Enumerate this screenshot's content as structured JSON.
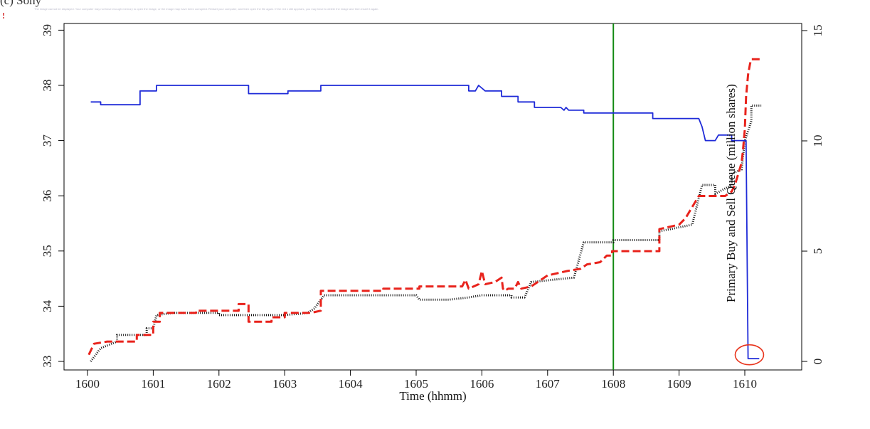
{
  "page": {
    "panel_label": "(c) Sony",
    "missing_image_note": "The image cannot be displayed. Your computer may not have enough memory to open the image, or the image may have been corrupted. Restart your computer, and then open the file again. If the red x still appears, you may have to delete the image and then insert it again."
  },
  "chart_data": {
    "type": "line",
    "title": "",
    "xlabel": "Time (hhmm)",
    "ylabel": "",
    "y2label": "Primary Buy and Sell Queue (million shares)",
    "xlim": [
      0,
      10.35
    ],
    "ylim": [
      33,
      39.1
    ],
    "y2lim": [
      0,
      15.2
    ],
    "x_ticks": [
      {
        "value": 0,
        "label": "1600"
      },
      {
        "value": 1,
        "label": "1601"
      },
      {
        "value": 2,
        "label": "1602"
      },
      {
        "value": 3,
        "label": "1603"
      },
      {
        "value": 4,
        "label": "1604"
      },
      {
        "value": 5,
        "label": "1605"
      },
      {
        "value": 6,
        "label": "1606"
      },
      {
        "value": 7,
        "label": "1607"
      },
      {
        "value": 8,
        "label": "1608"
      },
      {
        "value": 9,
        "label": "1609"
      },
      {
        "value": 10,
        "label": "1610"
      }
    ],
    "y_ticks": [
      {
        "value": 33,
        "label": "33"
      },
      {
        "value": 34,
        "label": "34"
      },
      {
        "value": 35,
        "label": "35"
      },
      {
        "value": 36,
        "label": "36"
      },
      {
        "value": 37,
        "label": "37"
      },
      {
        "value": 38,
        "label": "38"
      },
      {
        "value": 39,
        "label": "39"
      }
    ],
    "y2_ticks": [
      {
        "value": 0,
        "label": "0"
      },
      {
        "value": 5,
        "label": "5"
      },
      {
        "value": 10,
        "label": "10"
      },
      {
        "value": 15,
        "label": "15"
      }
    ],
    "grid": false,
    "vline": {
      "x": 8.0,
      "color": "#138a13"
    },
    "annotation": {
      "x": 10.07,
      "y2": 0.3,
      "shape": "ellipse",
      "color": "#e8341c"
    },
    "series": [
      {
        "axis": "left",
        "color": "#1f2bd8",
        "style": "solid",
        "points": [
          [
            0.05,
            37.7
          ],
          [
            0.2,
            37.7
          ],
          [
            0.2,
            37.65
          ],
          [
            0.8,
            37.65
          ],
          [
            0.8,
            37.9
          ],
          [
            1.05,
            37.9
          ],
          [
            1.05,
            38.0
          ],
          [
            2.45,
            38.0
          ],
          [
            2.45,
            37.85
          ],
          [
            3.05,
            37.85
          ],
          [
            3.05,
            37.9
          ],
          [
            3.55,
            37.9
          ],
          [
            3.55,
            38.0
          ],
          [
            5.8,
            38.0
          ],
          [
            5.8,
            37.9
          ],
          [
            5.9,
            37.9
          ],
          [
            5.95,
            38.0
          ],
          [
            6.05,
            37.9
          ],
          [
            6.3,
            37.9
          ],
          [
            6.3,
            37.8
          ],
          [
            6.55,
            37.8
          ],
          [
            6.55,
            37.7
          ],
          [
            6.8,
            37.7
          ],
          [
            6.8,
            37.6
          ],
          [
            7.2,
            37.6
          ],
          [
            7.25,
            37.55
          ],
          [
            7.28,
            37.6
          ],
          [
            7.32,
            37.55
          ],
          [
            7.55,
            37.55
          ],
          [
            7.55,
            37.5
          ],
          [
            8.6,
            37.5
          ],
          [
            8.6,
            37.4
          ],
          [
            9.3,
            37.4
          ],
          [
            9.35,
            37.25
          ],
          [
            9.4,
            37.0
          ],
          [
            9.55,
            37.0
          ],
          [
            9.6,
            37.1
          ],
          [
            9.8,
            37.1
          ],
          [
            9.8,
            37.0
          ],
          [
            10.02,
            37.0
          ],
          [
            10.05,
            33.05
          ],
          [
            10.22,
            33.05
          ]
        ]
      },
      {
        "axis": "right",
        "color": "#e8231c",
        "style": "dashed",
        "points": [
          [
            0.02,
            0.3
          ],
          [
            0.1,
            0.8
          ],
          [
            0.3,
            0.9
          ],
          [
            0.75,
            0.9
          ],
          [
            0.75,
            1.2
          ],
          [
            1.0,
            1.2
          ],
          [
            1.0,
            1.8
          ],
          [
            1.1,
            1.8
          ],
          [
            1.1,
            2.2
          ],
          [
            1.65,
            2.2
          ],
          [
            1.65,
            2.3
          ],
          [
            2.3,
            2.3
          ],
          [
            2.3,
            2.6
          ],
          [
            2.45,
            2.6
          ],
          [
            2.45,
            1.8
          ],
          [
            2.8,
            1.8
          ],
          [
            2.8,
            2.0
          ],
          [
            3.0,
            2.0
          ],
          [
            3.0,
            2.2
          ],
          [
            3.4,
            2.2
          ],
          [
            3.55,
            2.3
          ],
          [
            3.55,
            3.2
          ],
          [
            4.5,
            3.2
          ],
          [
            4.5,
            3.3
          ],
          [
            5.05,
            3.3
          ],
          [
            5.05,
            3.4
          ],
          [
            5.7,
            3.4
          ],
          [
            5.75,
            3.7
          ],
          [
            5.8,
            3.3
          ],
          [
            5.95,
            3.5
          ],
          [
            6.0,
            4.1
          ],
          [
            6.05,
            3.5
          ],
          [
            6.2,
            3.6
          ],
          [
            6.3,
            3.8
          ],
          [
            6.32,
            3.3
          ],
          [
            6.35,
            3.2
          ],
          [
            6.4,
            3.3
          ],
          [
            6.5,
            3.3
          ],
          [
            6.55,
            3.6
          ],
          [
            6.6,
            3.3
          ],
          [
            6.75,
            3.4
          ],
          [
            6.8,
            3.5
          ],
          [
            7.0,
            3.9
          ],
          [
            7.3,
            4.1
          ],
          [
            7.5,
            4.2
          ],
          [
            7.6,
            4.4
          ],
          [
            7.8,
            4.5
          ],
          [
            7.9,
            4.8
          ],
          [
            7.98,
            4.8
          ],
          [
            7.98,
            5.0
          ],
          [
            8.7,
            5.0
          ],
          [
            8.7,
            6.0
          ],
          [
            9.0,
            6.2
          ],
          [
            9.1,
            6.5
          ],
          [
            9.3,
            7.5
          ],
          [
            9.7,
            7.5
          ],
          [
            9.8,
            7.7
          ],
          [
            9.85,
            8.0
          ],
          [
            9.9,
            8.5
          ],
          [
            9.95,
            9.0
          ],
          [
            9.97,
            9.5
          ],
          [
            10.0,
            10.5
          ],
          [
            10.02,
            12.0
          ],
          [
            10.05,
            13.0
          ],
          [
            10.08,
            13.5
          ],
          [
            10.1,
            13.7
          ],
          [
            10.25,
            13.7
          ]
        ]
      },
      {
        "axis": "right",
        "color": "#111111",
        "style": "dotted",
        "points": [
          [
            0.05,
            0.0
          ],
          [
            0.2,
            0.6
          ],
          [
            0.45,
            0.9
          ],
          [
            0.45,
            1.2
          ],
          [
            0.9,
            1.2
          ],
          [
            0.9,
            1.5
          ],
          [
            1.0,
            1.5
          ],
          [
            1.05,
            2.1
          ],
          [
            1.3,
            2.2
          ],
          [
            2.0,
            2.2
          ],
          [
            2.0,
            2.1
          ],
          [
            3.0,
            2.1
          ],
          [
            3.35,
            2.2
          ],
          [
            3.45,
            2.4
          ],
          [
            3.6,
            3.0
          ],
          [
            5.0,
            3.0
          ],
          [
            5.05,
            2.8
          ],
          [
            5.5,
            2.8
          ],
          [
            5.8,
            2.9
          ],
          [
            6.0,
            3.0
          ],
          [
            6.05,
            3.0
          ],
          [
            6.45,
            3.0
          ],
          [
            6.45,
            2.9
          ],
          [
            6.65,
            2.9
          ],
          [
            6.75,
            3.6
          ],
          [
            7.4,
            3.8
          ],
          [
            7.55,
            5.4
          ],
          [
            8.0,
            5.4
          ],
          [
            8.0,
            5.5
          ],
          [
            8.7,
            5.5
          ],
          [
            8.7,
            5.9
          ],
          [
            9.2,
            6.2
          ],
          [
            9.35,
            8.0
          ],
          [
            9.55,
            8.0
          ],
          [
            9.55,
            7.6
          ],
          [
            9.8,
            8.0
          ],
          [
            9.8,
            8.5
          ],
          [
            9.95,
            8.7
          ],
          [
            10.0,
            10.0
          ],
          [
            10.1,
            10.9
          ],
          [
            10.1,
            11.6
          ],
          [
            10.25,
            11.6
          ]
        ]
      }
    ]
  }
}
